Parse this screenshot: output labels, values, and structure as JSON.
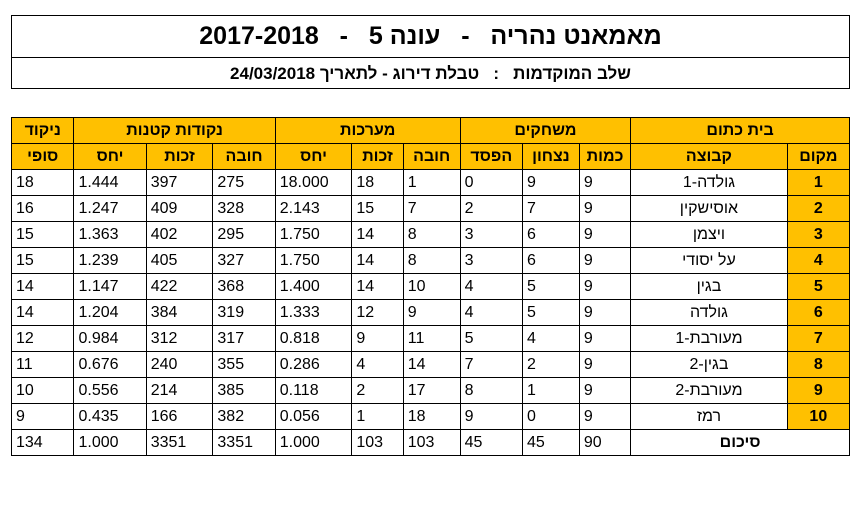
{
  "header": {
    "title": "מאמאנט נהריה   -   עונה 5   -   2017-2018",
    "subtitle": "שלב המוקדמות   :   טבלת דירוג - לתאריך 24/03/2018"
  },
  "table": {
    "group_name": "בית כתום",
    "groups": {
      "games": "משחקים",
      "sets": "מערכות",
      "points": "נקודות קטנות",
      "final_score": "ניקוד"
    },
    "columns": {
      "place": "מקום",
      "team": "קבוצה",
      "played": "כמות",
      "won": "נצחון",
      "lost": "הפסד",
      "sets_lost": "חובה",
      "sets_won": "זכות",
      "sets_ratio": "יחס",
      "points_lost": "חובה",
      "points_won": "זכות",
      "points_ratio": "יחס",
      "final": "סופי"
    },
    "rows": [
      {
        "place": "1",
        "team": "גולדה-1",
        "played": "9",
        "won": "9",
        "lost": "0",
        "sets_lost": "1",
        "sets_won": "18",
        "sets_ratio": "18.000",
        "points_lost": "275",
        "points_won": "397",
        "points_ratio": "1.444",
        "final": "18"
      },
      {
        "place": "2",
        "team": "אוסישקין",
        "played": "9",
        "won": "7",
        "lost": "2",
        "sets_lost": "7",
        "sets_won": "15",
        "sets_ratio": "2.143",
        "points_lost": "328",
        "points_won": "409",
        "points_ratio": "1.247",
        "final": "16"
      },
      {
        "place": "3",
        "team": "ויצמן",
        "played": "9",
        "won": "6",
        "lost": "3",
        "sets_lost": "8",
        "sets_won": "14",
        "sets_ratio": "1.750",
        "points_lost": "295",
        "points_won": "402",
        "points_ratio": "1.363",
        "final": "15"
      },
      {
        "place": "4",
        "team": "על יסודי",
        "played": "9",
        "won": "6",
        "lost": "3",
        "sets_lost": "8",
        "sets_won": "14",
        "sets_ratio": "1.750",
        "points_lost": "327",
        "points_won": "405",
        "points_ratio": "1.239",
        "final": "15"
      },
      {
        "place": "5",
        "team": "בגין",
        "played": "9",
        "won": "5",
        "lost": "4",
        "sets_lost": "10",
        "sets_won": "14",
        "sets_ratio": "1.400",
        "points_lost": "368",
        "points_won": "422",
        "points_ratio": "1.147",
        "final": "14"
      },
      {
        "place": "6",
        "team": "גולדה",
        "played": "9",
        "won": "5",
        "lost": "4",
        "sets_lost": "9",
        "sets_won": "12",
        "sets_ratio": "1.333",
        "points_lost": "319",
        "points_won": "384",
        "points_ratio": "1.204",
        "final": "14"
      },
      {
        "place": "7",
        "team": "מעורבת-1",
        "played": "9",
        "won": "4",
        "lost": "5",
        "sets_lost": "11",
        "sets_won": "9",
        "sets_ratio": "0.818",
        "points_lost": "317",
        "points_won": "312",
        "points_ratio": "0.984",
        "final": "12"
      },
      {
        "place": "8",
        "team": "בגין-2",
        "played": "9",
        "won": "2",
        "lost": "7",
        "sets_lost": "14",
        "sets_won": "4",
        "sets_ratio": "0.286",
        "points_lost": "355",
        "points_won": "240",
        "points_ratio": "0.676",
        "final": "11"
      },
      {
        "place": "9",
        "team": "מעורבת-2",
        "played": "9",
        "won": "1",
        "lost": "8",
        "sets_lost": "17",
        "sets_won": "2",
        "sets_ratio": "0.118",
        "points_lost": "385",
        "points_won": "214",
        "points_ratio": "0.556",
        "final": "10"
      },
      {
        "place": "10",
        "team": "רמז",
        "played": "9",
        "won": "0",
        "lost": "9",
        "sets_lost": "18",
        "sets_won": "1",
        "sets_ratio": "0.056",
        "points_lost": "382",
        "points_won": "166",
        "points_ratio": "0.435",
        "final": "9"
      }
    ],
    "totals": {
      "label": "סיכום",
      "played": "90",
      "won": "45",
      "lost": "45",
      "sets_lost": "103",
      "sets_won": "103",
      "sets_ratio": "1.000",
      "points_lost": "3351",
      "points_won": "3351",
      "points_ratio": "1.000",
      "final": "134"
    }
  },
  "colors": {
    "header_fill": "#ffc000",
    "place_fill": "#ffc000"
  }
}
